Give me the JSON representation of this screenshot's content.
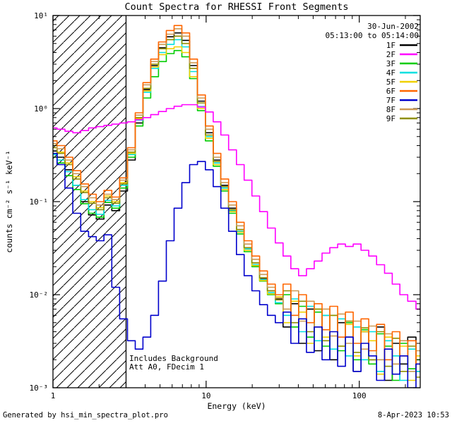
{
  "title": "Count Spectra for RHESSI Front Segments",
  "annotations": {
    "date": "30-Jun-2002",
    "time_range": "05:13:00 to 05:14:00",
    "note_line1": "Includes Background",
    "note_line2": "Att A0, FDecim 1"
  },
  "footer": {
    "left": "Generated by hsi_min_spectra_plot.pro",
    "right": "8-Apr-2023 10:53"
  },
  "chart_data": {
    "type": "line",
    "mode": "histogram-step",
    "title": "Count Spectra for RHESSI Front Segments",
    "xlabel": "Energy (keV)",
    "ylabel": "counts cm⁻² s⁻¹ keV⁻¹",
    "xscale": "log",
    "yscale": "log",
    "xlim": [
      1,
      250
    ],
    "ylim": [
      0.001,
      10
    ],
    "grid": false,
    "legend_position": "top-right",
    "hatch_region": {
      "from": 1,
      "to": 3
    },
    "x_ticks": [
      {
        "value": 1,
        "label": "1"
      },
      {
        "value": 10,
        "label": "10"
      },
      {
        "value": 100,
        "label": "100"
      }
    ],
    "y_ticks": [
      {
        "value": 0.001,
        "label": "10⁻³"
      },
      {
        "value": 0.01,
        "label": "10⁻²"
      },
      {
        "value": 0.1,
        "label": "10⁻¹"
      },
      {
        "value": 1,
        "label": "10⁰"
      },
      {
        "value": 10,
        "label": "10¹"
      }
    ],
    "energies": [
      1.0,
      1.13,
      1.27,
      1.43,
      1.61,
      1.81,
      2.03,
      2.28,
      2.57,
      2.89,
      3.25,
      3.65,
      4.1,
      4.61,
      5.18,
      5.83,
      6.55,
      7.36,
      8.28,
      9.31,
      10.5,
      11.8,
      13.2,
      14.9,
      16.7,
      18.8,
      21.1,
      23.7,
      26.7,
      30,
      33.7,
      37.9,
      42.6,
      47.9,
      53.9,
      60.6,
      68.1,
      76.6,
      86.1,
      96.8,
      109,
      122,
      138,
      155,
      174,
      195,
      220,
      250
    ],
    "series": [
      {
        "name": "1F",
        "color": "#000000",
        "values": [
          0.35,
          0.3,
          0.22,
          0.15,
          0.1,
          0.072,
          0.065,
          0.092,
          0.08,
          0.13,
          0.28,
          0.7,
          1.6,
          2.9,
          4.5,
          5.9,
          6.5,
          5.4,
          2.9,
          1.2,
          0.55,
          0.28,
          0.15,
          0.085,
          0.05,
          0.032,
          0.022,
          0.015,
          0.011,
          0.009,
          0.0045,
          0.008,
          0.003,
          0.007,
          0.0025,
          0.006,
          0.002,
          0.005,
          0.0035,
          0.0015,
          0.004,
          0.002,
          0.0045,
          0.0012,
          0.003,
          0.0018,
          0.0035,
          0.0015
        ]
      },
      {
        "name": "2F",
        "color": "#ff00ff",
        "values": [
          0.62,
          0.6,
          0.57,
          0.55,
          0.58,
          0.62,
          0.64,
          0.66,
          0.68,
          0.7,
          0.72,
          0.76,
          0.8,
          0.86,
          0.93,
          1.0,
          1.06,
          1.1,
          1.1,
          1.04,
          0.92,
          0.72,
          0.52,
          0.36,
          0.25,
          0.17,
          0.115,
          0.078,
          0.052,
          0.036,
          0.026,
          0.019,
          0.016,
          0.019,
          0.023,
          0.028,
          0.032,
          0.035,
          0.033,
          0.035,
          0.03,
          0.026,
          0.021,
          0.017,
          0.013,
          0.01,
          0.0085,
          0.007
        ]
      },
      {
        "name": "3F",
        "color": "#00cc00",
        "values": [
          0.3,
          0.26,
          0.19,
          0.135,
          0.095,
          0.075,
          0.068,
          0.098,
          0.085,
          0.14,
          0.3,
          0.65,
          1.3,
          2.2,
          3.2,
          3.9,
          4.2,
          3.6,
          2.1,
          0.95,
          0.45,
          0.24,
          0.13,
          0.075,
          0.045,
          0.029,
          0.02,
          0.014,
          0.01,
          0.008,
          0.01,
          0.0045,
          0.0075,
          0.0035,
          0.0065,
          0.0028,
          0.006,
          0.0025,
          0.005,
          0.002,
          0.0042,
          0.0018,
          0.0038,
          0.0028,
          0.0012,
          0.003,
          0.0016,
          0.002
        ]
      },
      {
        "name": "4F",
        "color": "#00e0e0",
        "values": [
          0.32,
          0.28,
          0.21,
          0.15,
          0.105,
          0.082,
          0.073,
          0.103,
          0.09,
          0.15,
          0.32,
          0.75,
          1.5,
          2.7,
          4.0,
          4.9,
          5.5,
          4.6,
          2.5,
          1.05,
          0.5,
          0.26,
          0.14,
          0.08,
          0.048,
          0.031,
          0.021,
          0.0145,
          0.0105,
          0.0082,
          0.006,
          0.009,
          0.004,
          0.0075,
          0.0032,
          0.006,
          0.0026,
          0.0055,
          0.0022,
          0.0045,
          0.002,
          0.004,
          0.0015,
          0.0032,
          0.0022,
          0.0012,
          0.0026,
          0.0015
        ]
      },
      {
        "name": "5F",
        "color": "#f0d000",
        "values": [
          0.4,
          0.34,
          0.26,
          0.185,
          0.13,
          0.1,
          0.086,
          0.115,
          0.1,
          0.16,
          0.33,
          0.78,
          1.55,
          2.8,
          3.8,
          4.4,
          4.6,
          4.0,
          2.2,
          1.0,
          0.48,
          0.25,
          0.135,
          0.078,
          0.047,
          0.03,
          0.0205,
          0.0142,
          0.0102,
          0.0095,
          0.005,
          0.0085,
          0.0065,
          0.003,
          0.007,
          0.0035,
          0.006,
          0.0028,
          0.0048,
          0.0022,
          0.004,
          0.0032,
          0.0014,
          0.0035,
          0.0018,
          0.0028,
          0.0012,
          0.0022
        ]
      },
      {
        "name": "6F",
        "color": "#ff6600",
        "values": [
          0.45,
          0.4,
          0.3,
          0.215,
          0.155,
          0.12,
          0.1,
          0.132,
          0.112,
          0.18,
          0.38,
          0.9,
          1.9,
          3.4,
          5.2,
          6.9,
          7.8,
          6.5,
          3.4,
          1.4,
          0.65,
          0.33,
          0.175,
          0.1,
          0.06,
          0.038,
          0.026,
          0.018,
          0.013,
          0.01,
          0.013,
          0.006,
          0.01,
          0.005,
          0.008,
          0.0042,
          0.0075,
          0.0035,
          0.0065,
          0.003,
          0.0055,
          0.0025,
          0.0048,
          0.002,
          0.004,
          0.0022,
          0.0032,
          0.0018
        ]
      },
      {
        "name": "7F",
        "color": "#0000cc",
        "values": [
          0.33,
          0.25,
          0.14,
          0.075,
          0.048,
          0.042,
          0.038,
          0.044,
          0.012,
          0.0055,
          0.0032,
          0.0026,
          0.0035,
          0.006,
          0.014,
          0.038,
          0.085,
          0.16,
          0.25,
          0.27,
          0.22,
          0.145,
          0.085,
          0.048,
          0.027,
          0.016,
          0.011,
          0.0078,
          0.006,
          0.005,
          0.0065,
          0.003,
          0.0055,
          0.0024,
          0.0045,
          0.002,
          0.004,
          0.0017,
          0.0035,
          0.0015,
          0.003,
          0.0022,
          0.0012,
          0.0026,
          0.0014,
          0.0022,
          0.001,
          0.0018
        ]
      },
      {
        "name": "8F",
        "color": "#cc9955",
        "values": [
          0.42,
          0.37,
          0.28,
          0.2,
          0.145,
          0.11,
          0.092,
          0.12,
          0.105,
          0.17,
          0.36,
          0.85,
          1.8,
          3.2,
          4.9,
          6.3,
          7.2,
          6.0,
          3.1,
          1.3,
          0.6,
          0.3,
          0.16,
          0.092,
          0.055,
          0.035,
          0.024,
          0.0165,
          0.012,
          0.0092,
          0.007,
          0.011,
          0.0052,
          0.0085,
          0.0045,
          0.007,
          0.0036,
          0.0062,
          0.003,
          0.0052,
          0.0026,
          0.0046,
          0.002,
          0.0038,
          0.0018,
          0.0032,
          0.0015,
          0.0025
        ]
      },
      {
        "name": "9F",
        "color": "#8f8f00",
        "values": [
          0.38,
          0.33,
          0.25,
          0.175,
          0.125,
          0.096,
          0.082,
          0.11,
          0.096,
          0.155,
          0.34,
          0.8,
          1.65,
          3.0,
          4.4,
          5.5,
          6.0,
          5.0,
          2.7,
          1.15,
          0.52,
          0.27,
          0.145,
          0.082,
          0.05,
          0.032,
          0.022,
          0.0152,
          0.011,
          0.0088,
          0.011,
          0.005,
          0.0085,
          0.004,
          0.007,
          0.0032,
          0.006,
          0.0028,
          0.0052,
          0.0024,
          0.0044,
          0.002,
          0.004,
          0.0017,
          0.0034,
          0.0015,
          0.0028,
          0.0013
        ]
      }
    ],
    "draw_order": [
      0,
      2,
      3,
      4,
      8,
      7,
      5,
      6,
      1
    ],
    "colors": {
      "axis": "#000000",
      "background": "#ffffff"
    }
  }
}
